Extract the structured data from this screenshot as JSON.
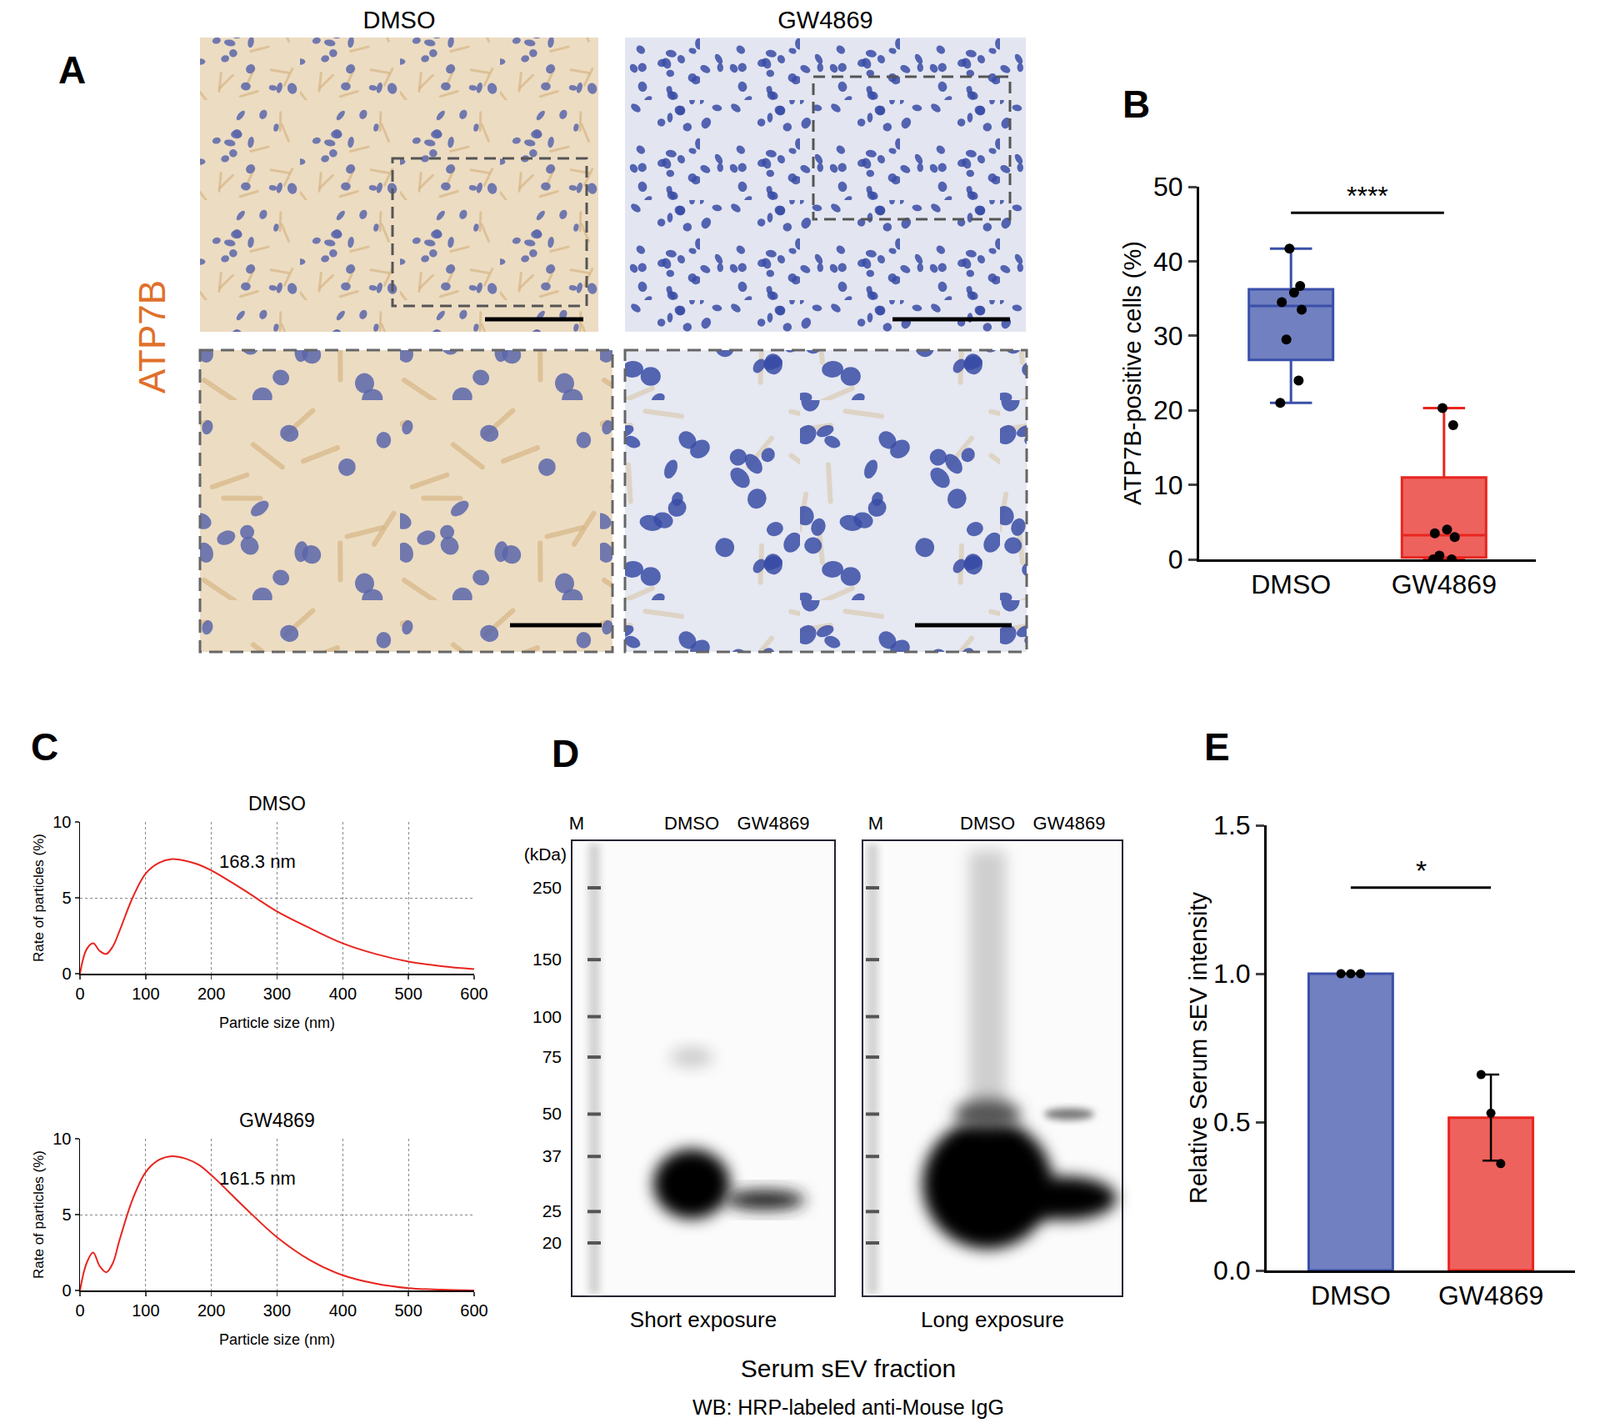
{
  "image_panels": [
    {
      "panel": "A",
      "columns": [
        "DMSO",
        "GW4869"
      ],
      "stain": "ATP7B"
    },
    {
      "panel": "D",
      "lanes": [
        "M",
        "DMSO",
        "GW4869"
      ],
      "unit": "(kDa)",
      "markers": [
        250,
        150,
        100,
        75,
        50,
        37,
        25,
        20
      ],
      "exposures": [
        "Short exposure",
        "Long exposure"
      ],
      "caption": "Serum sEV fraction",
      "subcaption": "WB: HRP-labeled anti-Mouse IgG"
    }
  ],
  "chart_data": [
    {
      "panel": "B",
      "type": "box",
      "categories": [
        "DMSO",
        "GW4869"
      ],
      "values": [
        [
          21,
          24,
          29.5,
          33.5,
          34.5,
          35.8,
          36.7,
          41.7
        ],
        [
          0,
          0,
          0.5,
          3,
          3.5,
          4,
          18,
          20.3
        ]
      ],
      "colors": [
        "#3a4fa8",
        "#e8251f"
      ],
      "y_label": "ATP7B-positive cells (%)",
      "ylim": [
        0,
        50
      ],
      "yticks": [
        0,
        10,
        20,
        30,
        40,
        50
      ],
      "grid": false,
      "annotations": [
        "****"
      ]
    },
    {
      "panel": "C",
      "type": "line",
      "title": "DMSO",
      "x": [
        0,
        10,
        20,
        30,
        40,
        50,
        60,
        80,
        100,
        120,
        140,
        160,
        180,
        200,
        250,
        300,
        350,
        400,
        450,
        500,
        550,
        600
      ],
      "values": [
        0,
        1.6,
        2.0,
        1.5,
        1.3,
        1.8,
        2.8,
        5.0,
        6.6,
        7.3,
        7.55,
        7.45,
        7.2,
        6.8,
        5.5,
        4.1,
        3.0,
        2.0,
        1.3,
        0.8,
        0.5,
        0.3
      ],
      "color": "#e8251f",
      "x_label": "Particle size (nm)",
      "y_label": "Rate of particles (%)",
      "xlim": [
        0,
        600
      ],
      "xticks": [
        0,
        100,
        200,
        300,
        400,
        500,
        600
      ],
      "ylim": [
        0,
        10
      ],
      "yticks": [
        0,
        5,
        10
      ],
      "grid": true,
      "annotations": [
        "168.3 nm"
      ]
    },
    {
      "type": "line",
      "title": "GW4869",
      "x": [
        0,
        10,
        20,
        30,
        40,
        50,
        60,
        80,
        100,
        120,
        140,
        160,
        180,
        200,
        250,
        300,
        350,
        400,
        450,
        500,
        550,
        600
      ],
      "values": [
        0,
        1.8,
        2.5,
        1.6,
        1.2,
        1.8,
        3.3,
        6.0,
        7.8,
        8.6,
        8.85,
        8.7,
        8.3,
        7.6,
        5.5,
        3.5,
        2.0,
        1.0,
        0.45,
        0.15,
        0.05,
        0
      ],
      "color": "#e8251f",
      "x_label": "Particle size (nm)",
      "y_label": "Rate of particles (%)",
      "xlim": [
        0,
        600
      ],
      "xticks": [
        0,
        100,
        200,
        300,
        400,
        500,
        600
      ],
      "ylim": [
        0,
        10
      ],
      "yticks": [
        0,
        5,
        10
      ],
      "grid": true,
      "annotations": [
        "161.5 nm"
      ]
    },
    {
      "panel": "E",
      "type": "bar",
      "categories": [
        "DMSO",
        "GW4869"
      ],
      "values": [
        1.0,
        0.515
      ],
      "error": [
        0,
        0.145
      ],
      "points": [
        [
          1.0,
          1.0,
          1.0
        ],
        [
          0.66,
          0.53,
          0.36
        ]
      ],
      "colors": [
        "#3a4fa8",
        "#e8251f"
      ],
      "y_label": "Relative Serum sEV intensity",
      "ylim": [
        0,
        1.5
      ],
      "yticks": [
        {
          "value": 0,
          "label": "0.0"
        },
        {
          "value": 0.5,
          "label": "0.5"
        },
        {
          "value": 1,
          "label": "1.0"
        },
        {
          "value": 1.5,
          "label": "1.5"
        }
      ],
      "grid": false,
      "annotations": [
        "*"
      ]
    }
  ]
}
